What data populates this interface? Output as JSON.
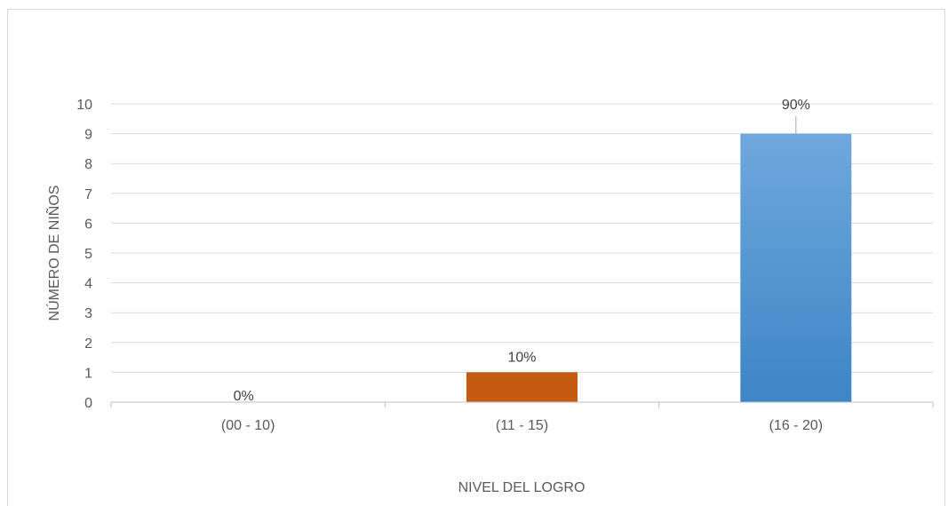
{
  "chart_data": {
    "type": "bar",
    "title": "",
    "xlabel": "NIVEL DEL LOGRO",
    "ylabel": "NÚMERO DE NIÑOS",
    "categories": [
      "(00 - 10)",
      "(11 - 15)",
      "(16 - 20)"
    ],
    "values": [
      0,
      1,
      9
    ],
    "data_labels": [
      "0%",
      "10%",
      "90%"
    ],
    "bar_colors": [
      "#4a90d9",
      "#c55a11",
      "#5b9bd5"
    ],
    "ylim": [
      0,
      10
    ],
    "yticks": [
      "0",
      "1",
      "2",
      "3",
      "4",
      "5",
      "6",
      "7",
      "8",
      "9",
      "10"
    ],
    "grid": true,
    "legend": "none"
  }
}
